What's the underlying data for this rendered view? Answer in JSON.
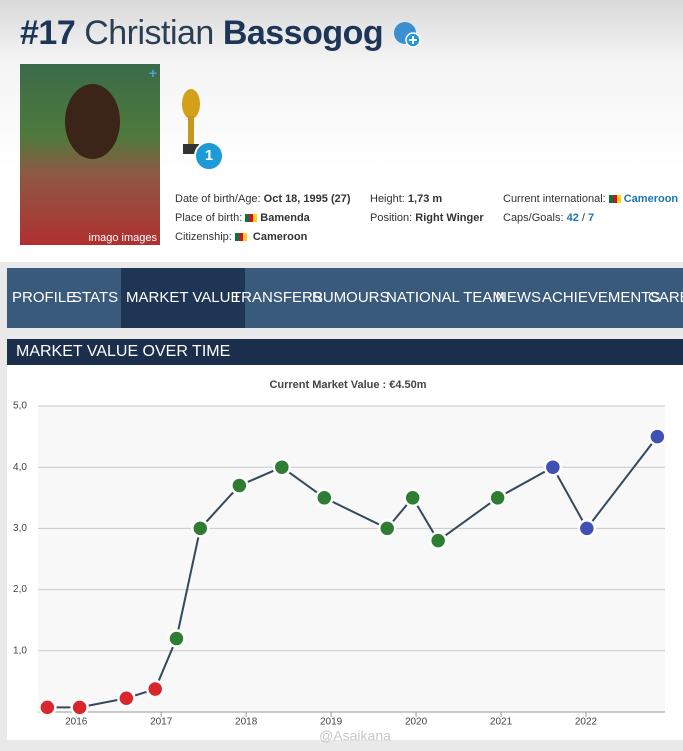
{
  "header": {
    "shirt_number": "#17",
    "first_name": "Christian",
    "last_name": "Bassogog",
    "photo_credit": "imago images",
    "trophy_count": "1"
  },
  "profile": {
    "fields": [
      {
        "label": "Date of birth/Age:",
        "value": "Oct 18, 1995 (27)"
      },
      {
        "label": "Place of birth:",
        "value": "Bamenda"
      },
      {
        "label": "Citizenship:",
        "value": "Cameroon"
      },
      {
        "label": "Height:",
        "value": "1,73 m"
      },
      {
        "label": "Position:",
        "value": "Right Winger"
      },
      {
        "label": "Current international:",
        "value": "Cameroon"
      }
    ],
    "caps_goals": {
      "label": "Caps/Goals:",
      "caps": "42",
      "separator": "/",
      "goals": "7"
    }
  },
  "nav": {
    "items": [
      "PROFILE",
      "STATS",
      "MARKET VALUE",
      "TRANSFERS",
      "RUMOURS",
      "NATIONAL TEAM",
      "NEWS",
      "ACHIEVEMENTS",
      "CAREER"
    ],
    "active": "MARKET VALUE"
  },
  "section_title": "MARKET VALUE OVER TIME",
  "watermark": "@Asaikana",
  "chart_data": {
    "type": "line",
    "title": "Current Market Value : €4.50m",
    "x": [
      2015.66,
      2016.04,
      2016.59,
      2016.93,
      2017.18,
      2017.46,
      2017.92,
      2018.42,
      2018.92,
      2019.66,
      2019.96,
      2020.26,
      2020.96,
      2021.61,
      2022.01,
      2022.84
    ],
    "values": [
      0.075,
      0.075,
      0.225,
      0.375,
      1.2,
      3.0,
      3.7,
      4.0,
      3.5,
      3.0,
      3.5,
      2.8,
      3.5,
      4.0,
      3.0,
      4.5
    ],
    "color": "#34495e",
    "marker_colors": [
      "#d9252b",
      "#d9252b",
      "#d9252b",
      "#d9252b",
      "#2e7d32",
      "#2e7d32",
      "#2e7d32",
      "#2e7d32",
      "#2e7d32",
      "#2e7d32",
      "#2e7d32",
      "#2e7d32",
      "#2e7d32",
      "#3f51b5",
      "#3f51b5",
      "#3f51b5"
    ],
    "xlim": [
      2015.55,
      2022.93
    ],
    "xticks": [
      2016,
      2017,
      2018,
      2019,
      2020,
      2021,
      2022
    ],
    "ylim": [
      0,
      5
    ],
    "yticks": [
      {
        "value": 1,
        "label": "1,0"
      },
      {
        "value": 2,
        "label": "2,0"
      },
      {
        "value": 3,
        "label": "3,0"
      },
      {
        "value": 4,
        "label": "4,0"
      },
      {
        "value": 5,
        "label": "5,0"
      }
    ],
    "grid": true
  }
}
